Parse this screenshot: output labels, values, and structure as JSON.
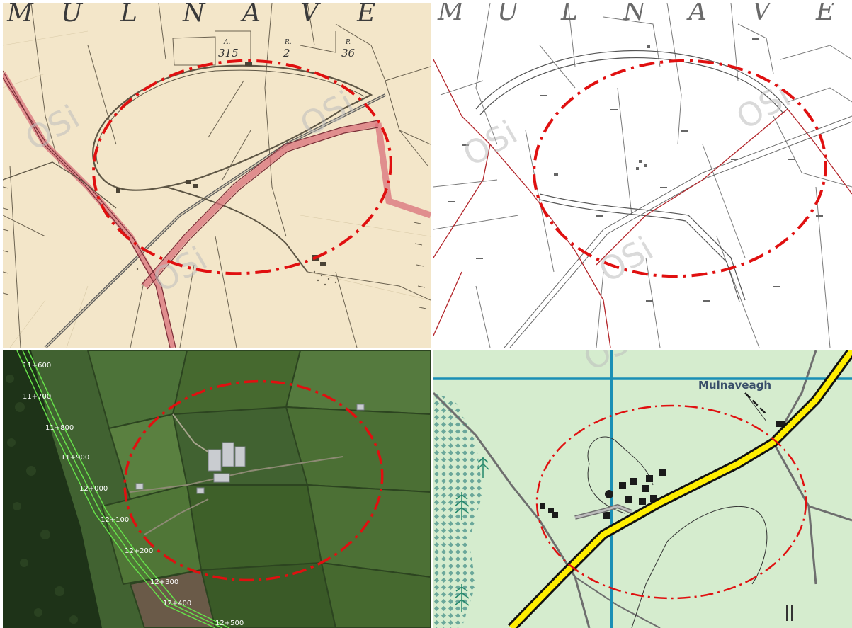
{
  "historic_map": {
    "header_letters": [
      "M",
      "U",
      "L",
      "N",
      "A",
      "V",
      "E"
    ],
    "parcels": [
      {
        "top": "A.",
        "bottom": "315"
      },
      {
        "top": "R.",
        "bottom": "2"
      },
      {
        "top": "P.",
        "bottom": "36"
      }
    ],
    "watermark": "OSi"
  },
  "townland_map": {
    "header_letters": [
      "M",
      "U",
      "L",
      "N",
      "A",
      "V",
      "E"
    ],
    "watermark": "OSi"
  },
  "aerial": {
    "chainage": [
      "11+600",
      "11+700",
      "11+800",
      "11+900",
      "12+000",
      "12+100",
      "12+200",
      "12+300",
      "12+400",
      "12+500"
    ]
  },
  "topo_map": {
    "place_name": "Mulnaveagh",
    "watermark": "OSi"
  },
  "colors": {
    "study_area": "#e01010",
    "road_national": "#ffee00",
    "water": "#1a8fb5",
    "historic_road": "#d9707a"
  }
}
